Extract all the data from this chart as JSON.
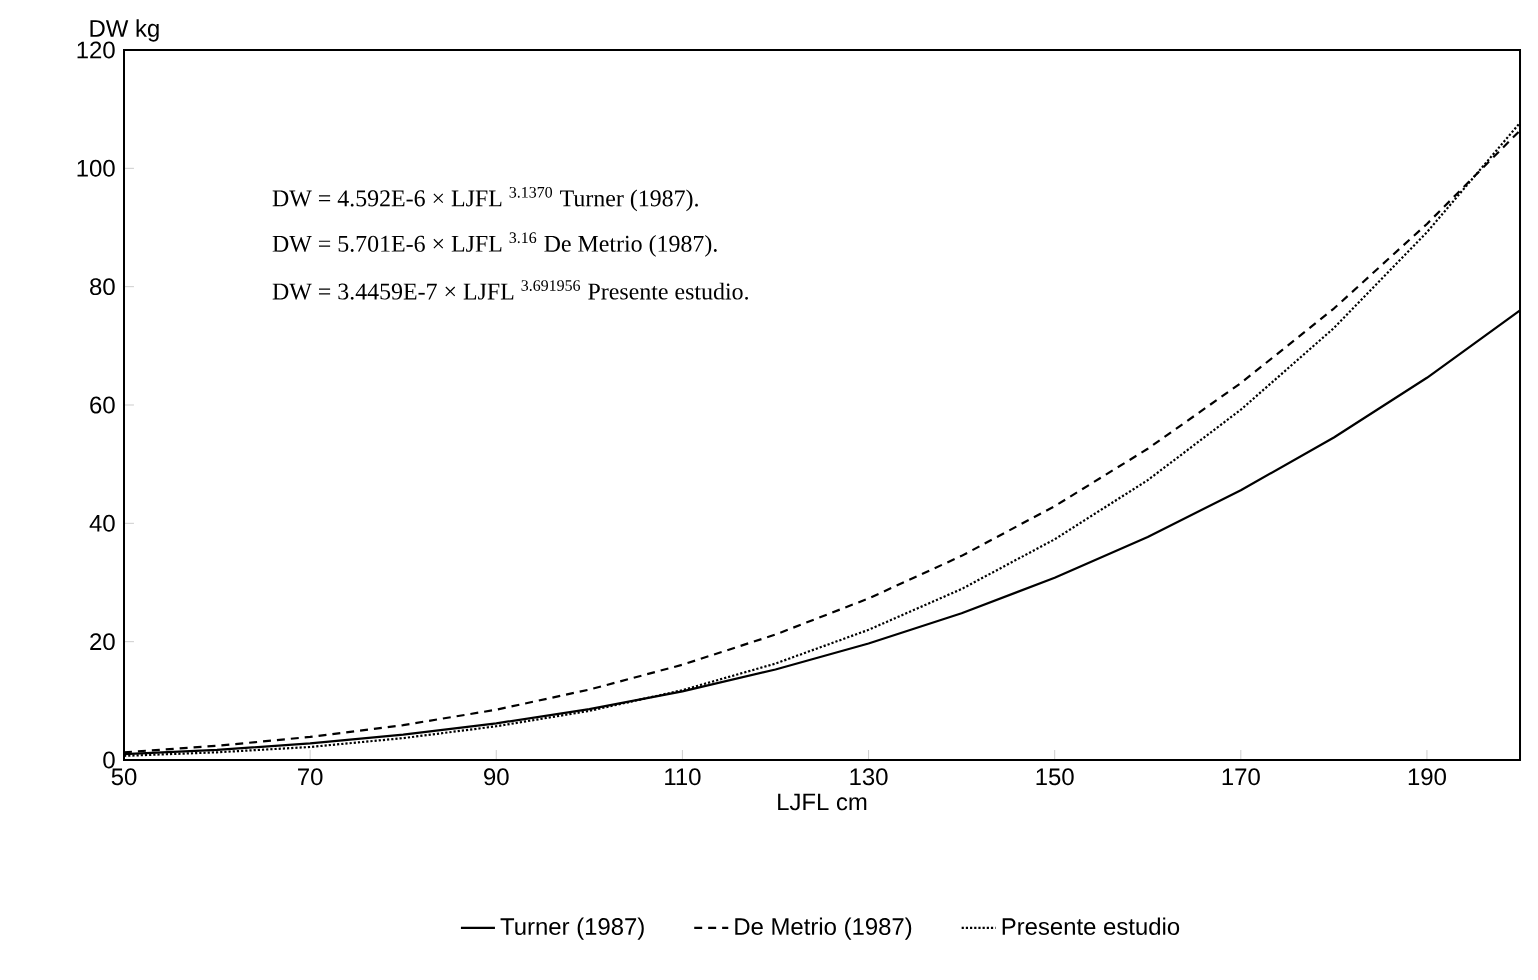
{
  "chart_data": {
    "type": "line",
    "xlabel": "LJFL cm",
    "ylabel": "DW kg",
    "x": [
      50,
      60,
      70,
      80,
      90,
      100,
      110,
      120,
      130,
      140,
      150,
      160,
      170,
      180,
      190,
      200
    ],
    "series": [
      {
        "name": "Turner (1987)",
        "color": "#000000",
        "line_style": "solid",
        "values": [
          1,
          1.7,
          2.8,
          4.3,
          6.2,
          8.6,
          11.6,
          15.3,
          19.7,
          24.8,
          30.8,
          37.7,
          45.6,
          54.5,
          64.6,
          76
        ]
      },
      {
        "name": "De Metrio (1987)",
        "color": "#000000",
        "line_style": "dashed",
        "values": [
          1.3,
          2.4,
          3.9,
          5.9,
          8.5,
          11.9,
          16.1,
          21.2,
          27.3,
          34.5,
          42.9,
          52.6,
          63.7,
          76.3,
          90.6,
          106.4
        ]
      },
      {
        "name": "Presente estudio",
        "color": "#000000",
        "line_style": "dotted",
        "values": [
          0.7,
          1.3,
          2.2,
          3.7,
          5.7,
          8.3,
          11.8,
          16.3,
          22,
          28.9,
          37.3,
          47.3,
          59.2,
          73,
          89.2,
          107.7
        ]
      }
    ],
    "xlim": [
      50,
      200
    ],
    "ylim": [
      0,
      120
    ],
    "xticks": [
      50,
      70,
      90,
      110,
      130,
      150,
      170,
      190
    ],
    "yticks": [
      0,
      20,
      40,
      60,
      80,
      100,
      120
    ],
    "legend": "bottom",
    "annotations": [
      "DW = 4.592E-6 × LJFL $^{3.1370}$ Turner (1987).",
      "DW = 5.701E-6 × LJFL $^{3.16}$ De Metrio (1987).",
      "DW = 3.4459E-7 × LJFL $^{3.691956}$ Presente estudio."
    ]
  }
}
